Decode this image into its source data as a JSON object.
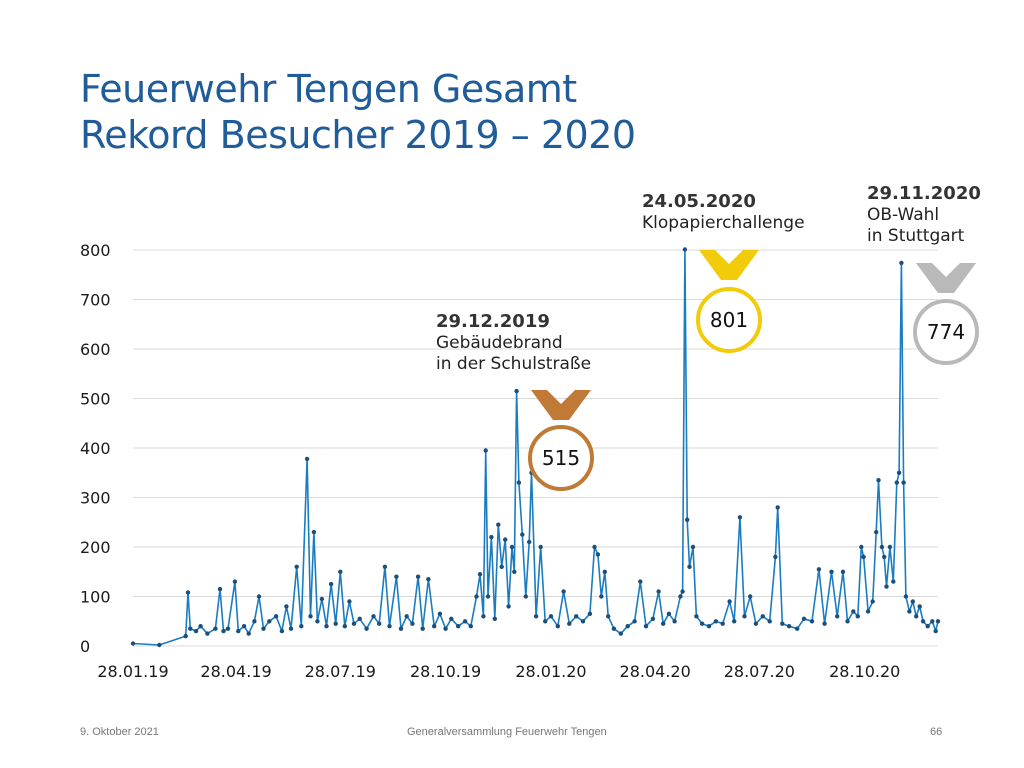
{
  "title": {
    "line1": "Feuerwehr Tengen Gesamt",
    "line2": "Rekord Besucher 2019 – 2020"
  },
  "footer": {
    "date": "9. Oktober 2021",
    "event": "Generalversammlung Feuerwehr Tengen",
    "page": "66"
  },
  "colors": {
    "title": "#1f5c99",
    "line": "#1a7cc1",
    "marker": "#1d4f7c",
    "gold": "#f2cc0a",
    "silver": "#b9b9b9",
    "bronze": "#c17a35",
    "grid": "#d9d9d9"
  },
  "chart_data": {
    "type": "line",
    "ylim": [
      0,
      800
    ],
    "yticks": [
      0,
      100,
      200,
      300,
      400,
      500,
      600,
      700,
      800
    ],
    "ytick_labels": [
      "0",
      "100",
      "200",
      "300",
      "400",
      "500",
      "600",
      "700",
      "800"
    ],
    "xlim": [
      "2019-01-28",
      "2020-12-31"
    ],
    "xticks": [
      "2019-01-28",
      "2019-04-28",
      "2019-07-28",
      "2019-10-28",
      "2020-01-28",
      "2020-04-28",
      "2020-07-28",
      "2020-10-28"
    ],
    "xtick_labels": [
      "28.01.19",
      "28.04.19",
      "28.07.19",
      "28.10.19",
      "28.01.20",
      "28.04.20",
      "28.07.20",
      "28.10.20"
    ],
    "grid": true,
    "legend": "none",
    "series": [
      {
        "values": [
          [
            "2019-01-28",
            5
          ],
          [
            "2019-02-20",
            2
          ],
          [
            "2019-03-15",
            20
          ],
          [
            "2019-03-17",
            108
          ],
          [
            "2019-03-19",
            35
          ],
          [
            "2019-03-24",
            30
          ],
          [
            "2019-03-28",
            40
          ],
          [
            "2019-04-03",
            25
          ],
          [
            "2019-04-10",
            35
          ],
          [
            "2019-04-14",
            115
          ],
          [
            "2019-04-17",
            30
          ],
          [
            "2019-04-21",
            35
          ],
          [
            "2019-04-27",
            130
          ],
          [
            "2019-04-30",
            30
          ],
          [
            "2019-05-05",
            40
          ],
          [
            "2019-05-09",
            25
          ],
          [
            "2019-05-14",
            50
          ],
          [
            "2019-05-18",
            100
          ],
          [
            "2019-05-22",
            35
          ],
          [
            "2019-05-27",
            50
          ],
          [
            "2019-06-02",
            60
          ],
          [
            "2019-06-07",
            30
          ],
          [
            "2019-06-11",
            80
          ],
          [
            "2019-06-15",
            35
          ],
          [
            "2019-06-20",
            160
          ],
          [
            "2019-06-24",
            40
          ],
          [
            "2019-06-29",
            378
          ],
          [
            "2019-07-02",
            60
          ],
          [
            "2019-07-05",
            230
          ],
          [
            "2019-07-08",
            50
          ],
          [
            "2019-07-12",
            95
          ],
          [
            "2019-07-16",
            40
          ],
          [
            "2019-07-20",
            125
          ],
          [
            "2019-07-24",
            45
          ],
          [
            "2019-07-28",
            150
          ],
          [
            "2019-08-01",
            40
          ],
          [
            "2019-08-05",
            90
          ],
          [
            "2019-08-09",
            45
          ],
          [
            "2019-08-14",
            55
          ],
          [
            "2019-08-20",
            35
          ],
          [
            "2019-08-26",
            60
          ],
          [
            "2019-08-31",
            45
          ],
          [
            "2019-09-05",
            160
          ],
          [
            "2019-09-09",
            40
          ],
          [
            "2019-09-15",
            140
          ],
          [
            "2019-09-19",
            35
          ],
          [
            "2019-09-24",
            60
          ],
          [
            "2019-09-29",
            45
          ],
          [
            "2019-10-04",
            140
          ],
          [
            "2019-10-08",
            35
          ],
          [
            "2019-10-13",
            135
          ],
          [
            "2019-10-18",
            40
          ],
          [
            "2019-10-23",
            65
          ],
          [
            "2019-10-28",
            35
          ],
          [
            "2019-11-02",
            55
          ],
          [
            "2019-11-08",
            40
          ],
          [
            "2019-11-14",
            50
          ],
          [
            "2019-11-19",
            40
          ],
          [
            "2019-11-24",
            100
          ],
          [
            "2019-11-27",
            145
          ],
          [
            "2019-11-30",
            60
          ],
          [
            "2019-12-02",
            395
          ],
          [
            "2019-12-04",
            100
          ],
          [
            "2019-12-07",
            220
          ],
          [
            "2019-12-10",
            55
          ],
          [
            "2019-12-13",
            245
          ],
          [
            "2019-12-16",
            160
          ],
          [
            "2019-12-19",
            215
          ],
          [
            "2019-12-22",
            80
          ],
          [
            "2019-12-25",
            200
          ],
          [
            "2019-12-27",
            150
          ],
          [
            "2019-12-29",
            515
          ],
          [
            "2019-12-31",
            330
          ],
          [
            "2020-01-03",
            225
          ],
          [
            "2020-01-06",
            100
          ],
          [
            "2020-01-09",
            210
          ],
          [
            "2020-01-11",
            350
          ],
          [
            "2020-01-15",
            60
          ],
          [
            "2020-01-19",
            200
          ],
          [
            "2020-01-23",
            50
          ],
          [
            "2020-01-28",
            60
          ],
          [
            "2020-02-03",
            40
          ],
          [
            "2020-02-08",
            110
          ],
          [
            "2020-02-13",
            45
          ],
          [
            "2020-02-19",
            60
          ],
          [
            "2020-02-25",
            50
          ],
          [
            "2020-03-02",
            65
          ],
          [
            "2020-03-06",
            200
          ],
          [
            "2020-03-09",
            185
          ],
          [
            "2020-03-12",
            100
          ],
          [
            "2020-03-15",
            150
          ],
          [
            "2020-03-18",
            60
          ],
          [
            "2020-03-23",
            35
          ],
          [
            "2020-03-29",
            25
          ],
          [
            "2020-04-04",
            40
          ],
          [
            "2020-04-10",
            50
          ],
          [
            "2020-04-15",
            130
          ],
          [
            "2020-04-20",
            40
          ],
          [
            "2020-04-26",
            55
          ],
          [
            "2020-05-01",
            110
          ],
          [
            "2020-05-05",
            45
          ],
          [
            "2020-05-10",
            65
          ],
          [
            "2020-05-15",
            50
          ],
          [
            "2020-05-20",
            100
          ],
          [
            "2020-05-22",
            110
          ],
          [
            "2020-05-24",
            801
          ],
          [
            "2020-05-26",
            255
          ],
          [
            "2020-05-28",
            160
          ],
          [
            "2020-05-31",
            200
          ],
          [
            "2020-06-03",
            60
          ],
          [
            "2020-06-08",
            45
          ],
          [
            "2020-06-14",
            40
          ],
          [
            "2020-06-20",
            50
          ],
          [
            "2020-06-26",
            45
          ],
          [
            "2020-07-02",
            90
          ],
          [
            "2020-07-06",
            50
          ],
          [
            "2020-07-11",
            260
          ],
          [
            "2020-07-15",
            60
          ],
          [
            "2020-07-20",
            100
          ],
          [
            "2020-07-25",
            45
          ],
          [
            "2020-07-31",
            60
          ],
          [
            "2020-08-06",
            50
          ],
          [
            "2020-08-11",
            180
          ],
          [
            "2020-08-13",
            280
          ],
          [
            "2020-08-17",
            45
          ],
          [
            "2020-08-23",
            40
          ],
          [
            "2020-08-30",
            35
          ],
          [
            "2020-09-05",
            55
          ],
          [
            "2020-09-12",
            50
          ],
          [
            "2020-09-18",
            155
          ],
          [
            "2020-09-23",
            45
          ],
          [
            "2020-09-29",
            150
          ],
          [
            "2020-10-04",
            60
          ],
          [
            "2020-10-09",
            150
          ],
          [
            "2020-10-13",
            50
          ],
          [
            "2020-10-18",
            70
          ],
          [
            "2020-10-22",
            60
          ],
          [
            "2020-10-25",
            200
          ],
          [
            "2020-10-27",
            180
          ],
          [
            "2020-10-31",
            70
          ],
          [
            "2020-11-04",
            90
          ],
          [
            "2020-11-07",
            230
          ],
          [
            "2020-11-09",
            335
          ],
          [
            "2020-11-12",
            200
          ],
          [
            "2020-11-14",
            180
          ],
          [
            "2020-11-16",
            120
          ],
          [
            "2020-11-19",
            200
          ],
          [
            "2020-11-22",
            130
          ],
          [
            "2020-11-25",
            330
          ],
          [
            "2020-11-27",
            350
          ],
          [
            "2020-11-29",
            774
          ],
          [
            "2020-12-01",
            330
          ],
          [
            "2020-12-03",
            100
          ],
          [
            "2020-12-06",
            70
          ],
          [
            "2020-12-09",
            90
          ],
          [
            "2020-12-12",
            60
          ],
          [
            "2020-12-15",
            80
          ],
          [
            "2020-12-18",
            50
          ],
          [
            "2020-12-22",
            40
          ],
          [
            "2020-12-26",
            50
          ],
          [
            "2020-12-29",
            30
          ],
          [
            "2020-12-31",
            50
          ]
        ]
      }
    ],
    "annotations": [
      {
        "id": "bronze",
        "date_label": "29.12.2019",
        "lines": [
          "Gebäudebrand",
          "in der Schulstraße"
        ],
        "value_label": "515",
        "medal": "bronze"
      },
      {
        "id": "gold",
        "date_label": "24.05.2020",
        "lines": [
          "Klopapierchallenge"
        ],
        "value_label": "801",
        "medal": "gold"
      },
      {
        "id": "silver",
        "date_label": "29.11.2020",
        "lines": [
          "OB-Wahl",
          "in Stuttgart"
        ],
        "value_label": "774",
        "medal": "silver"
      }
    ]
  }
}
